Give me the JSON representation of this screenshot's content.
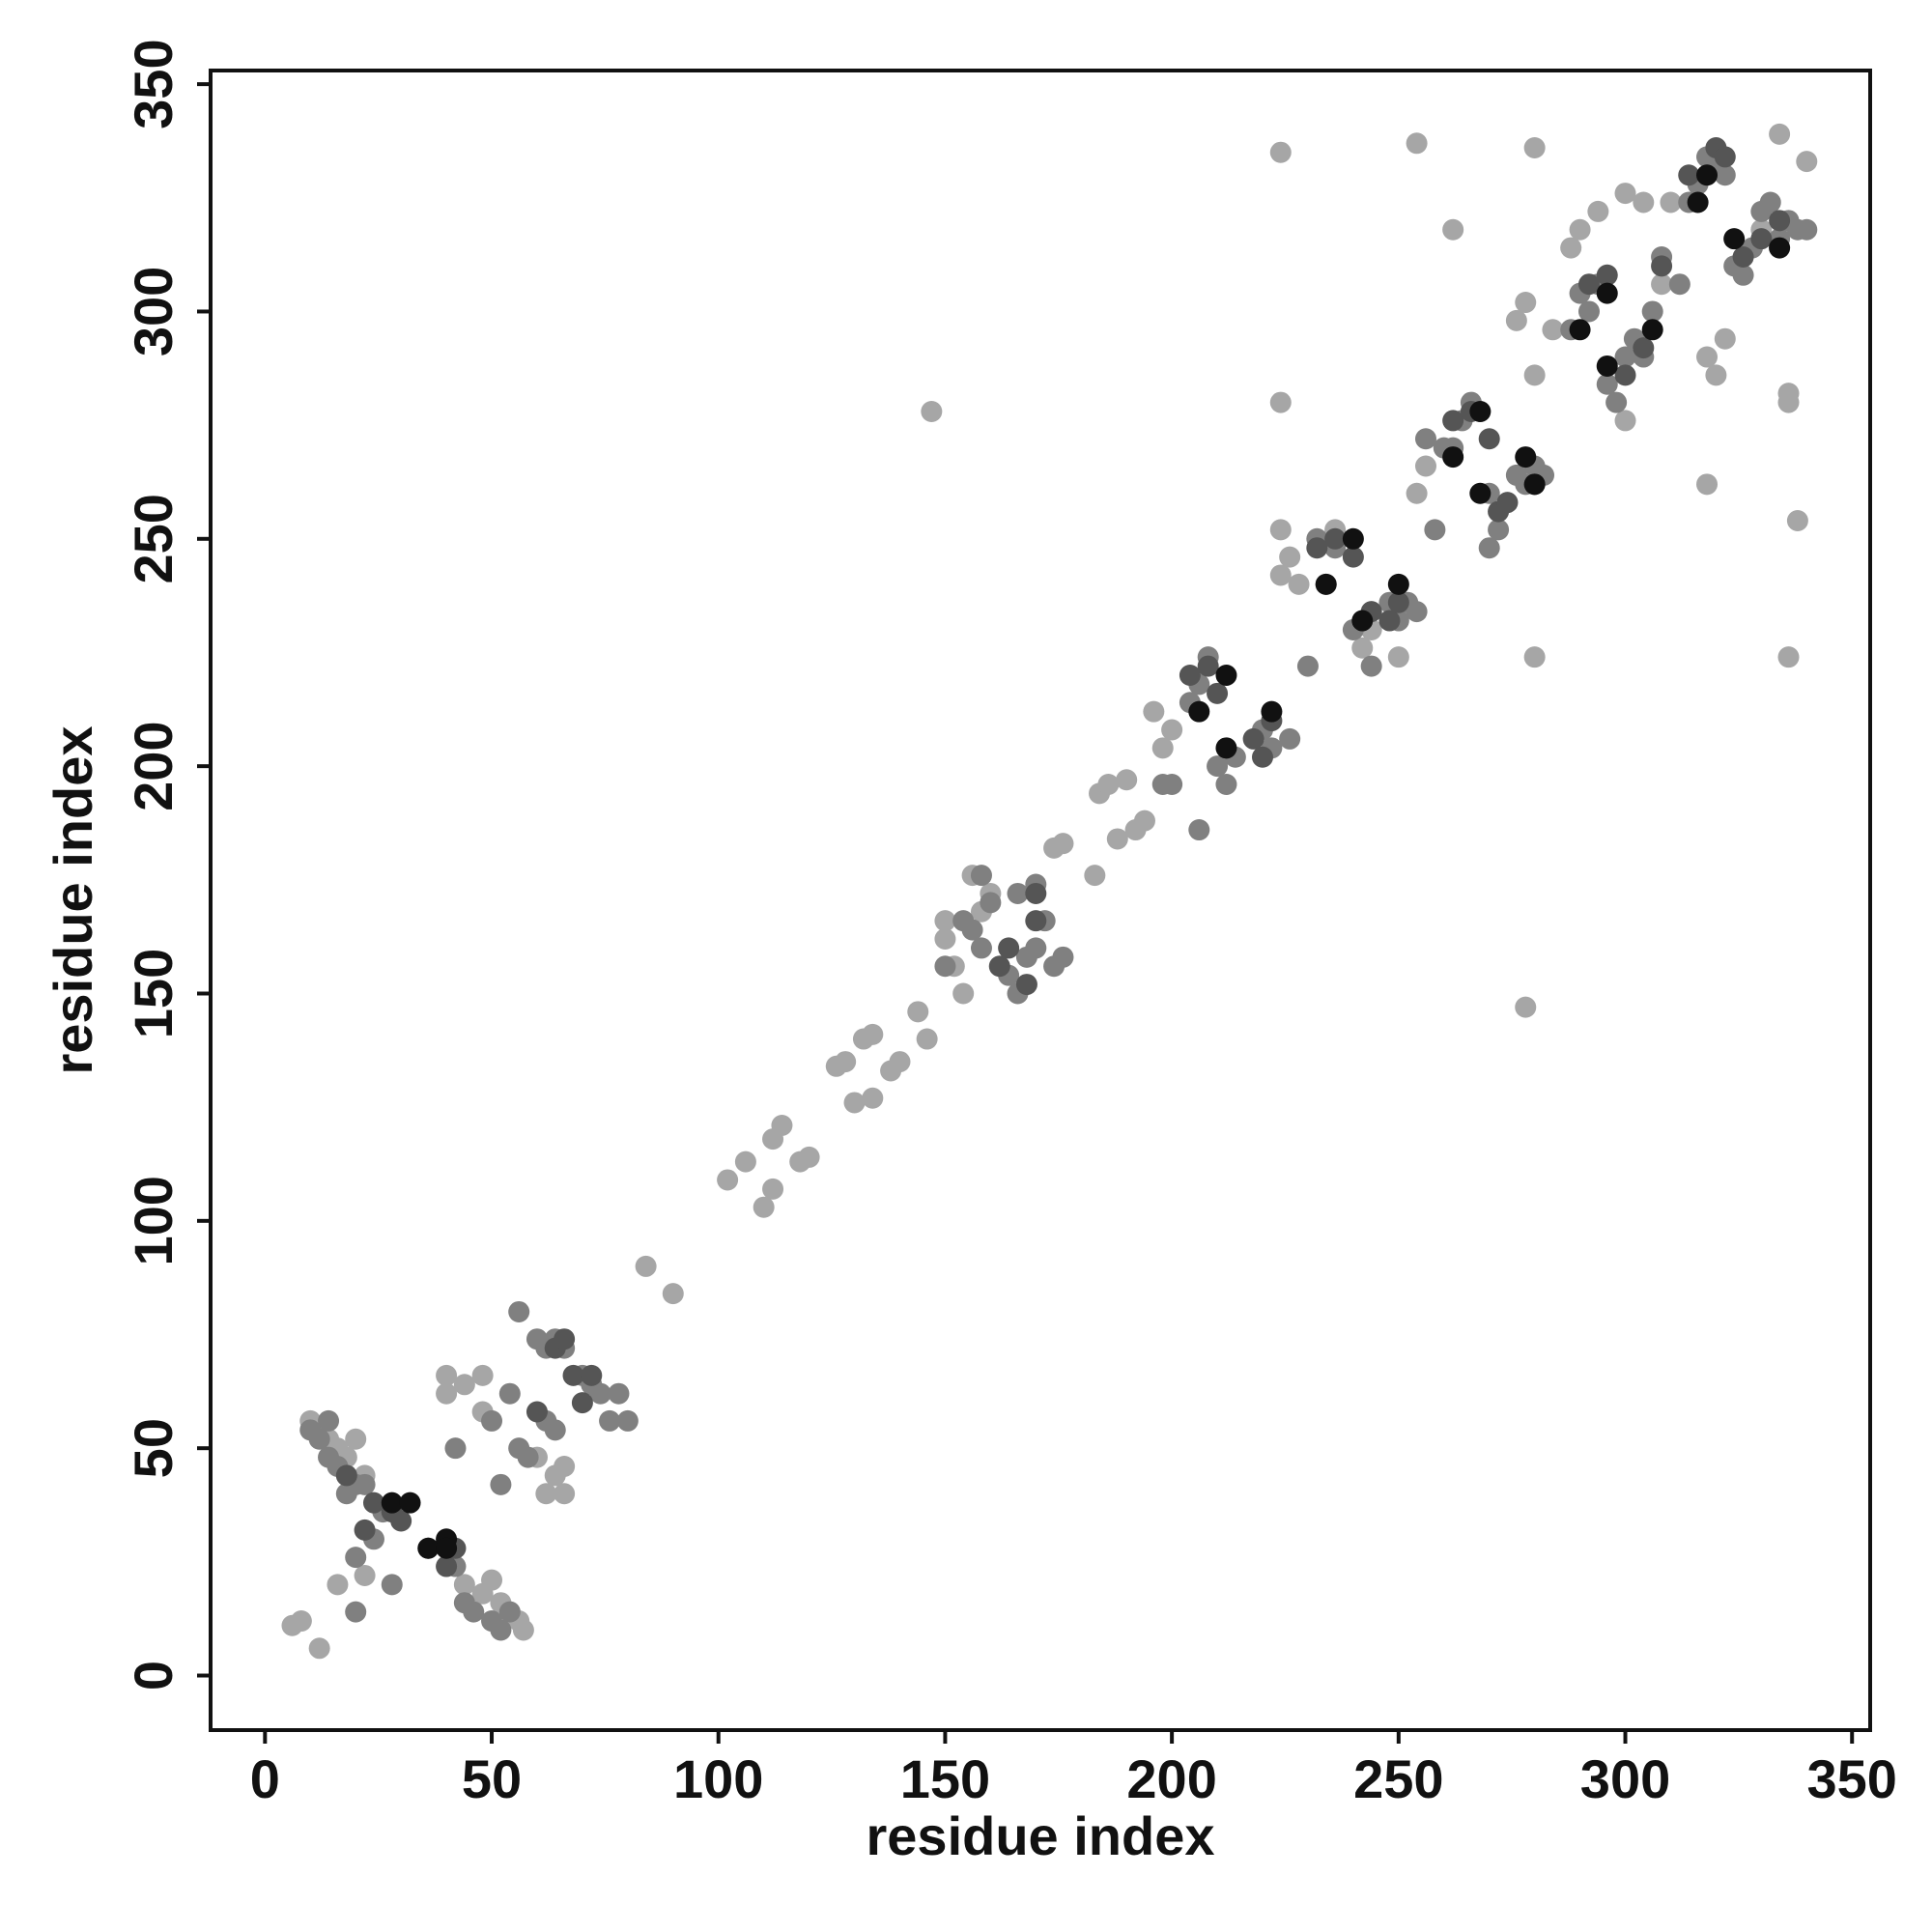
{
  "chart_data": {
    "type": "scatter",
    "xlabel": "residue index",
    "ylabel": "residue index",
    "xlim": [
      -12,
      354
    ],
    "ylim": [
      -12,
      353
    ],
    "xticks": [
      0,
      50,
      100,
      150,
      200,
      250,
      300,
      350
    ],
    "yticks": [
      0,
      50,
      100,
      150,
      200,
      250,
      300,
      350
    ],
    "series": [
      {
        "color": "#a6a6a6",
        "x": [
          10,
          12,
          14,
          16,
          18,
          20,
          22,
          8,
          6,
          12,
          16,
          22,
          44,
          48,
          52,
          54,
          56,
          57,
          50,
          40,
          40,
          44,
          48,
          48,
          60,
          62,
          66,
          66,
          64,
          84,
          90,
          102,
          106,
          110,
          112,
          114,
          112,
          118,
          120,
          126,
          128,
          132,
          134,
          130,
          134,
          138,
          140,
          146,
          144,
          147,
          150,
          152,
          154,
          150,
          156,
          160,
          158,
          174,
          176,
          183,
          184,
          186,
          190,
          188,
          192,
          194,
          196,
          198,
          200,
          224,
          254,
          280,
          224,
          224,
          224,
          226,
          228,
          236,
          242,
          244,
          250,
          254,
          256,
          262,
          276,
          278,
          280,
          284,
          288,
          290,
          294,
          300,
          304,
          310,
          280,
          278,
          318,
          334,
          336,
          336,
          338,
          336,
          340,
          318,
          320,
          322,
          308,
          300,
          330
        ],
        "y": [
          56,
          54,
          52,
          50,
          48,
          52,
          44,
          12,
          11,
          6,
          20,
          22,
          20,
          18,
          16,
          14,
          12,
          10,
          21,
          66,
          62,
          64,
          66,
          58,
          48,
          40,
          40,
          46,
          44,
          90,
          84,
          109,
          113,
          103,
          118,
          121,
          107,
          113,
          114,
          134,
          135,
          140,
          141,
          126,
          127,
          133,
          135,
          140,
          146,
          278,
          166,
          156,
          150,
          162,
          176,
          172,
          168,
          182,
          183,
          176,
          194,
          196,
          197,
          184,
          186,
          188,
          212,
          204,
          208,
          335,
          337,
          336,
          280,
          242,
          252,
          246,
          240,
          252,
          226,
          230,
          224,
          260,
          266,
          318,
          298,
          302,
          286,
          296,
          314,
          318,
          322,
          326,
          324,
          324,
          224,
          147,
          262,
          339,
          280,
          282,
          254,
          224,
          333,
          290,
          286,
          294,
          306,
          276,
          318
        ]
      },
      {
        "color": "#808080",
        "x": [
          12,
          14,
          16,
          18,
          20,
          18,
          22,
          10,
          14,
          26,
          24,
          20,
          20,
          28,
          44,
          46,
          50,
          52,
          54,
          42,
          58,
          56,
          52,
          42,
          50,
          54,
          56,
          60,
          62,
          64,
          66,
          70,
          72,
          74,
          76,
          80,
          78,
          62,
          64,
          158,
          160,
          156,
          154,
          164,
          166,
          168,
          170,
          174,
          176,
          166,
          170,
          172,
          198,
          200,
          204,
          206,
          208,
          206,
          210,
          212,
          214,
          220,
          222,
          226,
          230,
          234,
          236,
          232,
          240,
          244,
          248,
          250,
          252,
          254,
          258,
          260,
          264,
          266,
          268,
          262,
          256,
          270,
          272,
          270,
          276,
          278,
          280,
          282,
          288,
          290,
          292,
          294,
          296,
          298,
          300,
          302,
          304,
          306,
          308,
          312,
          314,
          316,
          318,
          320,
          322,
          324,
          326,
          328,
          330,
          332,
          334,
          336,
          338,
          340,
          150,
          158
        ],
        "y": [
          52,
          48,
          46,
          44,
          42,
          40,
          42,
          54,
          56,
          36,
          30,
          26,
          14,
          20,
          16,
          14,
          12,
          10,
          14,
          24,
          48,
          50,
          42,
          50,
          56,
          62,
          80,
          74,
          72,
          74,
          72,
          66,
          64,
          62,
          56,
          56,
          62,
          56,
          54,
          176,
          170,
          164,
          166,
          154,
          150,
          158,
          160,
          156,
          158,
          172,
          174,
          166,
          196,
          196,
          214,
          218,
          224,
          186,
          200,
          196,
          202,
          208,
          204,
          206,
          222,
          240,
          248,
          250,
          230,
          222,
          236,
          232,
          236,
          234,
          252,
          270,
          276,
          280,
          278,
          270,
          272,
          260,
          252,
          248,
          264,
          262,
          266,
          264,
          296,
          304,
          300,
          306,
          284,
          280,
          290,
          294,
          290,
          300,
          312,
          306,
          324,
          328,
          334,
          332,
          330,
          310,
          308,
          314,
          322,
          324,
          316,
          320,
          318,
          318,
          156,
          160
        ]
      },
      {
        "color": "#555555",
        "x": [
          18,
          24,
          28,
          30,
          36,
          40,
          42,
          22,
          64,
          66,
          68,
          70,
          72,
          60,
          162,
          164,
          168,
          170,
          170,
          204,
          208,
          210,
          218,
          222,
          220,
          232,
          236,
          240,
          244,
          248,
          250,
          262,
          266,
          270,
          272,
          274,
          280,
          292,
          296,
          300,
          304,
          308,
          314,
          320,
          322,
          326,
          330,
          334
        ],
        "y": [
          44,
          38,
          36,
          34,
          28,
          24,
          28,
          32,
          72,
          74,
          66,
          60,
          66,
          58,
          156,
          160,
          152,
          166,
          172,
          220,
          222,
          216,
          206,
          210,
          202,
          248,
          250,
          246,
          234,
          232,
          236,
          276,
          278,
          272,
          256,
          258,
          262,
          306,
          308,
          286,
          292,
          310,
          330,
          336,
          334,
          312,
          316,
          320
        ]
      },
      {
        "color": "#111111",
        "x": [
          28,
          32,
          36,
          40,
          40,
          206,
          212,
          212,
          222,
          234,
          240,
          242,
          250,
          262,
          268,
          268,
          278,
          280,
          290,
          296,
          296,
          306,
          316,
          324,
          318,
          334
        ],
        "y": [
          38,
          38,
          28,
          30,
          28,
          212,
          204,
          220,
          212,
          240,
          250,
          232,
          240,
          268,
          278,
          260,
          268,
          262,
          296,
          304,
          288,
          296,
          324,
          316,
          330,
          314
        ]
      }
    ]
  }
}
